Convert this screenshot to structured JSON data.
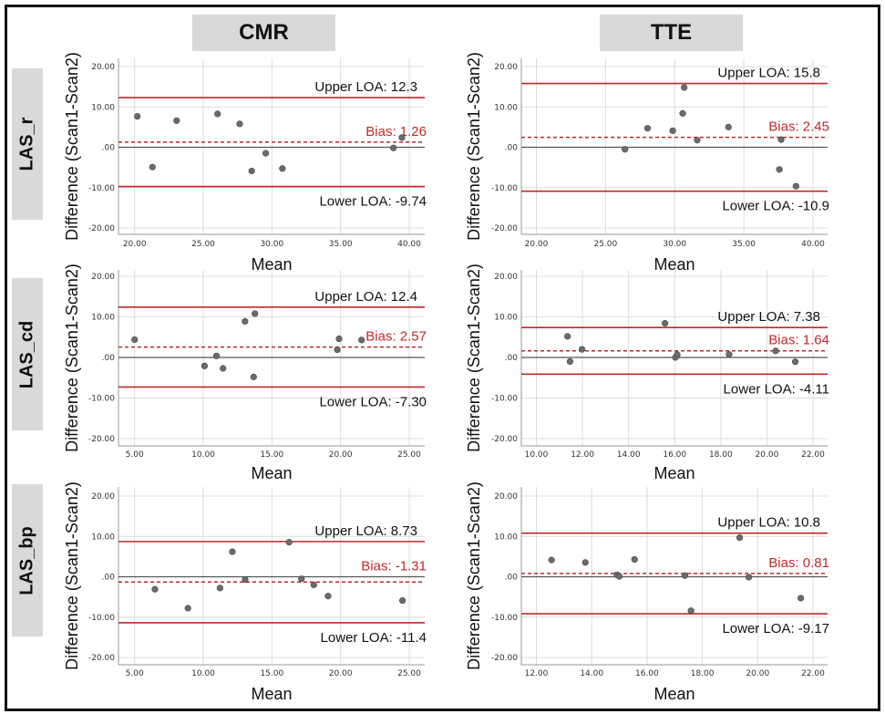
{
  "column_headers": [
    "CMR",
    "TTE"
  ],
  "row_labels": [
    "LAS_r",
    "LAS_cd",
    "LAS_bp"
  ],
  "colors": {
    "loa_line": "#c0282a",
    "bias_line": "#c0282a",
    "bias_text": "#c0282a",
    "zero_line": "#555555",
    "point": "#6b6b6b",
    "grid": "#dcdcdc",
    "header_bg": "#d9d9d9"
  },
  "chart_data": [
    {
      "type": "scatter",
      "title": "CMR LAS_r",
      "column": "CMR",
      "row": "LAS_r",
      "xlabel": "Mean",
      "ylabel": "Difference (Scan1-Scan2)",
      "xlim": [
        20,
        40
      ],
      "ylim": [
        -20,
        20
      ],
      "xticks": [
        20,
        25,
        30,
        35,
        40
      ],
      "xtick_labels": [
        "20.00",
        "25.00",
        "30.00",
        "35.00",
        "40.00"
      ],
      "yticks": [
        20,
        10,
        0,
        -10,
        -20
      ],
      "ytick_labels": [
        "20.00",
        "10.00",
        ".00",
        "-10.00",
        "-20.00"
      ],
      "grid": true,
      "upper_loa": 12.3,
      "bias": 1.26,
      "lower_loa": -9.74,
      "upper_label": "Upper LOA: 12.3",
      "bias_label": "Bias: 1.26",
      "lower_label": "Lower LOA: -9.74",
      "x": [
        20.2,
        21.3,
        23.06,
        26.04,
        27.65,
        28.53,
        29.55,
        30.76,
        38.85,
        39.47
      ],
      "y": [
        7.67,
        -4.9,
        6.6,
        8.27,
        5.79,
        -5.86,
        -1.5,
        -5.26,
        -0.15,
        2.41
      ]
    },
    {
      "type": "scatter",
      "title": "TTE LAS_r",
      "column": "TTE",
      "row": "LAS_r",
      "xlabel": "Mean",
      "ylabel": "Difference (Scan1-Scan2)",
      "xlim": [
        20,
        40
      ],
      "ylim": [
        -20,
        20
      ],
      "xticks": [
        20,
        25,
        30,
        35,
        40
      ],
      "xtick_labels": [
        "20.00",
        "25.00",
        "30.00",
        "35.00",
        "40.00"
      ],
      "yticks": [
        20,
        10,
        0,
        -10,
        -20
      ],
      "ytick_labels": [
        "20.00",
        "10.00",
        ".00",
        "-10.00",
        "-20.00"
      ],
      "grid": true,
      "upper_loa": 15.8,
      "bias": 2.45,
      "lower_loa": -10.9,
      "upper_label": "Upper LOA: 15.8",
      "bias_label": "Bias: 2.45",
      "lower_label": "Lower LOA: -10.9",
      "x": [
        26.4,
        28.04,
        29.86,
        30.58,
        30.69,
        31.63,
        33.89,
        37.7,
        37.57,
        38.77
      ],
      "y": [
        -0.5,
        4.7,
        4.1,
        8.4,
        14.8,
        1.75,
        5.0,
        1.9,
        -5.5,
        -9.65
      ]
    },
    {
      "type": "scatter",
      "title": "CMR LAS_cd",
      "column": "CMR",
      "row": "LAS_cd",
      "xlabel": "Mean",
      "ylabel": "Difference (Scan1-Scan2)",
      "xlim": [
        5,
        25
      ],
      "ylim": [
        -20,
        20
      ],
      "xticks": [
        5,
        10,
        15,
        20,
        25
      ],
      "xtick_labels": [
        "5.00",
        "10.00",
        "15.00",
        "20.00",
        "25.00"
      ],
      "yticks": [
        20,
        10,
        0,
        -10,
        -20
      ],
      "ytick_labels": [
        "20.00",
        "10.00",
        ".00",
        "-10.00",
        "-20.00"
      ],
      "grid": true,
      "upper_loa": 12.4,
      "bias": 2.57,
      "lower_loa": -7.3,
      "upper_label": "Upper LOA: 12.4",
      "bias_label": "Bias: 2.57",
      "lower_label": "Lower LOA: -7.30",
      "x": [
        5.0,
        10.09,
        10.96,
        11.44,
        13.04,
        13.76,
        13.67,
        19.76,
        19.89,
        21.53
      ],
      "y": [
        4.4,
        -2.1,
        0.38,
        -2.7,
        8.9,
        10.8,
        -4.8,
        1.9,
        4.6,
        4.3
      ]
    },
    {
      "type": "scatter",
      "title": "TTE LAS_cd",
      "column": "TTE",
      "row": "LAS_cd",
      "xlabel": "Mean",
      "ylabel": "Difference (Scan1-Scan2)",
      "xlim": [
        10,
        22
      ],
      "ylim": [
        -20,
        20
      ],
      "xticks": [
        10,
        12,
        14,
        16,
        18,
        20,
        22
      ],
      "xtick_labels": [
        "10.00",
        "12.00",
        "14.00",
        "16.00",
        "18.00",
        "20.00",
        "22.00"
      ],
      "yticks": [
        20,
        10,
        0,
        -10,
        -20
      ],
      "ytick_labels": [
        "20.00",
        "10.00",
        ".00",
        "-10.00",
        "-20.00"
      ],
      "grid": true,
      "upper_loa": 7.38,
      "bias": 1.64,
      "lower_loa": -4.11,
      "upper_label": "Upper LOA: 7.38",
      "bias_label": "Bias: 1.64",
      "lower_label": "Lower LOA: -4.11",
      "x": [
        11.35,
        11.46,
        11.98,
        15.58,
        16.03,
        16.11,
        18.36,
        20.38,
        21.23
      ],
      "y": [
        5.2,
        -1.0,
        2.0,
        8.4,
        0.0,
        0.7,
        0.75,
        1.6,
        -1.05
      ]
    },
    {
      "type": "scatter",
      "title": "CMR LAS_bp",
      "column": "CMR",
      "row": "LAS_bp",
      "xlabel": "Mean",
      "ylabel": "Difference (Scan1-Scan2)",
      "xlim": [
        5,
        25
      ],
      "ylim": [
        -20,
        20
      ],
      "xticks": [
        5,
        10,
        15,
        20,
        25
      ],
      "xtick_labels": [
        "5.00",
        "10.00",
        "15.00",
        "20.00",
        "25.00"
      ],
      "yticks": [
        20,
        10,
        0,
        -10,
        -20
      ],
      "ytick_labels": [
        "20.00",
        "10.00",
        ".00",
        "-10.00",
        "-20.00"
      ],
      "grid": true,
      "upper_loa": 8.73,
      "bias": -1.31,
      "lower_loa": -11.4,
      "upper_label": "Upper LOA: 8.73",
      "bias_label": "Bias: -1.31",
      "lower_label": "Lower LOA: -11.4",
      "x": [
        6.48,
        8.88,
        11.22,
        12.12,
        13.05,
        16.25,
        17.15,
        18.05,
        19.09,
        24.51
      ],
      "y": [
        -3.1,
        -7.8,
        -2.8,
        6.2,
        -0.7,
        8.56,
        -0.5,
        -2.0,
        -4.8,
        -5.9
      ]
    },
    {
      "type": "scatter",
      "title": "TTE LAS_bp",
      "column": "TTE",
      "row": "LAS_bp",
      "xlabel": "Mean",
      "ylabel": "Difference (Scan1-Scan2)",
      "xlim": [
        12,
        22
      ],
      "ylim": [
        -20,
        20
      ],
      "xticks": [
        12,
        14,
        16,
        18,
        20,
        22
      ],
      "xtick_labels": [
        "12.00",
        "14.00",
        "16.00",
        "18.00",
        "20.00",
        "22.00"
      ],
      "yticks": [
        20,
        10,
        0,
        -10,
        -20
      ],
      "ytick_labels": [
        "20.00",
        "10.00",
        ".00",
        "-10.00",
        "-20.00"
      ],
      "grid": true,
      "upper_loa": 10.8,
      "bias": 0.81,
      "lower_loa": -9.17,
      "upper_label": "Upper LOA: 10.8",
      "bias_label": "Bias: 0.81",
      "lower_label": "Lower LOA: -9.17",
      "x": [
        12.55,
        13.77,
        14.91,
        15.0,
        15.55,
        17.37,
        17.59,
        19.35,
        19.68,
        21.56
      ],
      "y": [
        4.15,
        3.55,
        0.5,
        0.1,
        4.3,
        0.3,
        -8.4,
        9.7,
        -0.1,
        -5.3
      ]
    }
  ]
}
